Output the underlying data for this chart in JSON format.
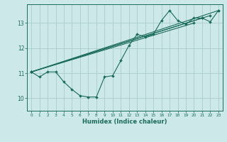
{
  "xlabel": "Humidex (Indice chaleur)",
  "background_color": "#cce8e8",
  "grid_color": "#aacccc",
  "line_color": "#1a6b5a",
  "xlim": [
    -0.5,
    23.5
  ],
  "ylim": [
    9.5,
    13.75
  ],
  "yticks": [
    10,
    11,
    12,
    13
  ],
  "xticks": [
    0,
    1,
    2,
    3,
    4,
    5,
    6,
    7,
    8,
    9,
    10,
    11,
    12,
    13,
    14,
    15,
    16,
    17,
    18,
    19,
    20,
    21,
    22,
    23
  ],
  "zigzag": [
    11.05,
    10.85,
    11.05,
    11.05,
    10.65,
    10.35,
    10.1,
    10.05,
    10.05,
    10.85,
    10.9,
    11.5,
    12.1,
    12.55,
    12.45,
    12.55,
    13.1,
    13.5,
    13.1,
    12.95,
    13.2,
    13.2,
    13.05,
    13.5
  ],
  "trend_lines": [
    [
      [
        0,
        23
      ],
      [
        11.05,
        13.5
      ]
    ],
    [
      [
        0,
        22
      ],
      [
        11.05,
        13.3
      ]
    ],
    [
      [
        0,
        21
      ],
      [
        11.05,
        13.2
      ]
    ],
    [
      [
        0,
        20
      ],
      [
        11.05,
        13.0
      ]
    ]
  ]
}
